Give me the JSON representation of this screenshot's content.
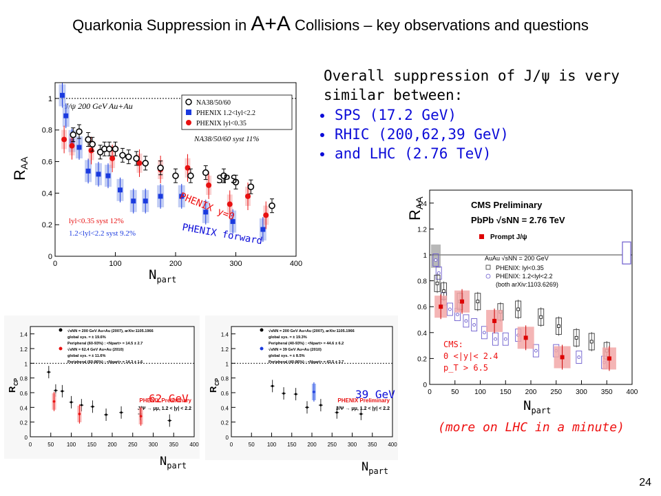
{
  "slide": {
    "title_pre": "Quarkonia Suppression in ",
    "title_big": "A+A",
    "title_post": " Collisions – key observations and questions",
    "page_number": "24",
    "summary_head": "Overall suppression of J/ψ is very similar between:",
    "bullets": [
      "SPS (17.2 GeV)",
      "RHIC (200,62,39 GeV)",
      "and LHC (2.76 TeV)"
    ],
    "footnote": "(more on LHC in a minute)"
  },
  "colors": {
    "blue_text": "#0b0bd8",
    "red_text": "#ee1111",
    "phenix_blue": "#1a3adf",
    "phenix_red": "#e81010",
    "cms_red": "#dd0000",
    "cms_purple": "#6a5acd"
  },
  "axis_labels": {
    "r": "R",
    "aa": "AA",
    "cp": "CP",
    "n": "N",
    "part": "part"
  },
  "chart_data": [
    {
      "type": "scatter",
      "name_label": "main",
      "header": "J/ψ    200 GeV Au+Au",
      "xlim": [
        0,
        400
      ],
      "ylim": [
        0,
        1.1
      ],
      "xticks": [
        "0",
        "100",
        "200",
        "300",
        "400"
      ],
      "yticks": [
        "0",
        "0.2",
        "0.4",
        "0.6",
        "0.8",
        "1"
      ],
      "legend": [
        "NA38/50/60",
        "PHENIX 1.2<lyl<2.2",
        "PHENIX lyl<0.35"
      ],
      "legend_note": "NA38/50/60 syst 11%",
      "syst_notes": [
        "lyl<0.35 syst 12%",
        "1.2<lyl<2.2 syst 9.2%"
      ],
      "annotations": [
        "SPS",
        "PHENIX y=0",
        "PHENIX forward"
      ],
      "series": [
        {
          "name": "NA38/50/60",
          "x": [
            30,
            40,
            55,
            62,
            75,
            82,
            90,
            100,
            112,
            122,
            135,
            150,
            175,
            200,
            225,
            250,
            280,
            300,
            325,
            360
          ],
          "y": [
            0.77,
            0.79,
            0.74,
            0.71,
            0.66,
            0.68,
            0.68,
            0.68,
            0.64,
            0.63,
            0.62,
            0.59,
            0.56,
            0.51,
            0.51,
            0.53,
            0.51,
            0.47,
            0.44,
            0.32
          ]
        },
        {
          "name": "PHENIX 1.2<lyl<2.2",
          "x": [
            12,
            18,
            28,
            40,
            55,
            72,
            88,
            108,
            130,
            150,
            175,
            210,
            250,
            295,
            345
          ],
          "y": [
            1.02,
            0.89,
            0.73,
            0.69,
            0.54,
            0.52,
            0.51,
            0.42,
            0.35,
            0.35,
            0.38,
            0.38,
            0.28,
            0.22,
            0.17
          ]
        },
        {
          "name": "PHENIX lyl<0.35",
          "x": [
            15,
            28,
            60,
            95,
            140,
            175,
            220,
            255,
            290,
            320,
            350
          ],
          "y": [
            0.74,
            0.7,
            0.67,
            0.62,
            0.59,
            0.55,
            0.56,
            0.45,
            0.33,
            0.38,
            0.26
          ]
        }
      ]
    },
    {
      "type": "scatter",
      "name_label": "62 GeV",
      "energy_label": "62 GeV",
      "xlim": [
        0,
        400
      ],
      "ylim": [
        0,
        1.5
      ],
      "xticks": [
        "0",
        "50",
        "100",
        "150",
        "200",
        "250",
        "300",
        "350",
        "400"
      ],
      "yticks": [
        "0",
        "0.2",
        "0.4",
        "0.6",
        "0.8",
        "1",
        "1.2",
        "1.4"
      ],
      "legend": [
        "√sNN = 200 GeV Au+Au (2007), arXiv:1105.1966",
        "global sys. = ± 19.6%",
        "Peripheral (60-93%) : <Npart> = 14.5 ± 2.7",
        "√sNN = 62.4 GeV Au+Au (2010)",
        "global sys. = ± 11.6%",
        "Peripheral (60-86%) : <Npart> = 14.3 ± 1.6"
      ],
      "prelim": "PHENIX Preliminary",
      "channel": "J/Ψ → μμ, 1.2 < |y| < 2.2",
      "series": [
        {
          "name": "200 GeV",
          "x": [
            45,
            62,
            78,
            100,
            125,
            152,
            185,
            222,
            268,
            340
          ],
          "y": [
            0.88,
            0.63,
            0.62,
            0.47,
            0.43,
            0.41,
            0.3,
            0.33,
            0.31,
            0.22
          ]
        },
        {
          "name": "62 GeV",
          "x": [
            58,
            120,
            270
          ],
          "y": [
            0.48,
            0.31,
            0.28
          ]
        }
      ]
    },
    {
      "type": "scatter",
      "name_label": "39 GeV",
      "energy_label": "39 GeV",
      "xlim": [
        0,
        400
      ],
      "ylim": [
        0,
        1.5
      ],
      "xticks": [
        "0",
        "50",
        "100",
        "150",
        "200",
        "250",
        "300",
        "350",
        "400"
      ],
      "yticks": [
        "0",
        "0.2",
        "0.4",
        "0.6",
        "0.8",
        "1",
        "1.2",
        "1.4"
      ],
      "legend": [
        "√sNN = 200 GeV Au+Au (2007), arXiv:1105.1966",
        "global sys. = ± 19.3%",
        "Peripheral (40-93%) : <Npart> = 44.6 ± 6.2",
        "√sNN = 39 GeV Au+Au (2010)",
        "global sys. = ± 8.5%",
        "Peripheral (40-86%) : <Npart> = 43.5 ± 3.7"
      ],
      "prelim": "PHENIX Preliminary",
      "channel": "J/Ψ → μμ, 1.2 < |y| < 2.2",
      "series": [
        {
          "name": "200 GeV",
          "x": [
            102,
            130,
            160,
            188,
            222,
            262,
            322
          ],
          "y": [
            0.69,
            0.59,
            0.58,
            0.4,
            0.43,
            0.33,
            0.31
          ]
        },
        {
          "name": "39 GeV",
          "x": [
            205
          ],
          "y": [
            0.61
          ]
        }
      ]
    },
    {
      "type": "scatter",
      "name_label": "CMS",
      "header": "CMS Preliminary",
      "subheader": "PbPb  √sNN = 2.76 TeV",
      "xlim": [
        0,
        400
      ],
      "ylim": [
        0,
        1.5
      ],
      "xticks": [
        "0",
        "50",
        "100",
        "150",
        "200",
        "250",
        "300",
        "350",
        "400"
      ],
      "yticks": [
        "0",
        "0.2",
        "0.4",
        "0.6",
        "0.8",
        "1",
        "1.2",
        "1.4"
      ],
      "legend": [
        "Prompt J/ψ",
        "AuAu  √sNN = 200 GeV",
        "PHENIX: lyl<0.35",
        "PHENIX: 1.2<lyl<2.2",
        "(both arXiv:1103.6269)"
      ],
      "cms_note": [
        "CMS:",
        "0 <|y|< 2.4",
        "p_T > 6.5"
      ],
      "series": [
        {
          "name": "Prompt J/ψ",
          "x": [
            22,
            64,
            128,
            190,
            262,
            355
          ],
          "y": [
            0.6,
            0.64,
            0.49,
            0.36,
            0.21,
            0.2
          ]
        },
        {
          "name": "PHENIX: lyl<0.35",
          "x": [
            15,
            28,
            60,
            95,
            140,
            175,
            220,
            255,
            290,
            320,
            350
          ],
          "y": [
            0.78,
            0.72,
            0.64,
            0.64,
            0.56,
            0.58,
            0.52,
            0.45,
            0.36,
            0.33,
            0.26
          ]
        },
        {
          "name": "PHENIX: 1.2<lyl<2.2",
          "x": [
            12,
            18,
            28,
            40,
            55,
            72,
            88,
            108,
            130,
            150,
            175,
            210,
            250,
            295,
            345
          ],
          "y": [
            0.96,
            0.86,
            0.66,
            0.58,
            0.54,
            0.49,
            0.46,
            0.4,
            0.35,
            0.35,
            0.38,
            0.26,
            0.26,
            0.21,
            0.17
          ]
        }
      ]
    }
  ]
}
